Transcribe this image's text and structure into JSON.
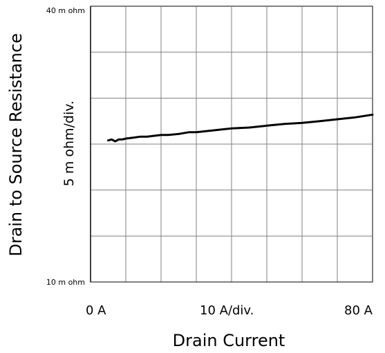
{
  "chart_data": {
    "type": "line",
    "xlabel": "Drain Current",
    "ylabel": "Drain to Source Resistance",
    "x_tick_left": "0  A",
    "x_tick_mid": "10  A/div.",
    "x_tick_right": "80  A",
    "y_tick_top": "40 m ohm",
    "y_tick_bottom": "10 m ohm",
    "y_division_label": "5 m ohm/div.",
    "xlim": [
      0,
      80
    ],
    "ylim": [
      10,
      40
    ],
    "grid": true,
    "grid_divisions": {
      "x": 8,
      "y": 6
    },
    "line_color": "#000000",
    "grid_color": "#7f7f7f",
    "series": [
      {
        "x": [
          5,
          6,
          7,
          8,
          9,
          10,
          12,
          14,
          16,
          18,
          20,
          22,
          25,
          28,
          30,
          35,
          40,
          45,
          50,
          55,
          60,
          65,
          70,
          75,
          80
        ],
        "y": [
          25.4,
          25.5,
          25.3,
          25.5,
          25.5,
          25.6,
          25.7,
          25.8,
          25.8,
          25.9,
          26.0,
          26.0,
          26.1,
          26.3,
          26.3,
          26.5,
          26.7,
          26.8,
          27.0,
          27.2,
          27.3,
          27.5,
          27.7,
          27.9,
          28.2
        ]
      }
    ]
  }
}
